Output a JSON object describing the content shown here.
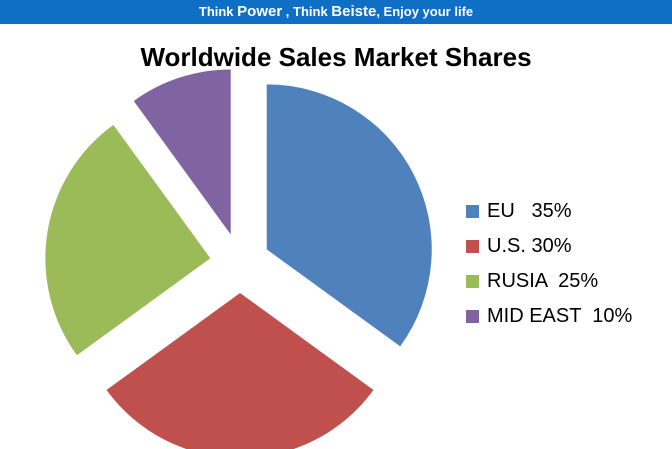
{
  "banner": {
    "part1": "Think ",
    "part2": "Power",
    "part3": " , Think ",
    "part4": "Beiste",
    "part5": ", Enjoy your life"
  },
  "chart_data": {
    "type": "pie",
    "title": "Worldwide Sales Market Shares",
    "slices": [
      {
        "label": "EU   35%",
        "name": "EU",
        "value": 35,
        "color": "#4f81bd"
      },
      {
        "label": "U.S. 30%",
        "name": "U.S.",
        "value": 30,
        "color": "#c0504d"
      },
      {
        "label": "RUSIA  25%",
        "name": "RUSIA",
        "value": 25,
        "color": "#9bbb59"
      },
      {
        "label": "MID EAST  10%",
        "name": "MID EAST",
        "value": 10,
        "color": "#8064a2"
      }
    ],
    "exploded": true,
    "legend_position": "right"
  }
}
